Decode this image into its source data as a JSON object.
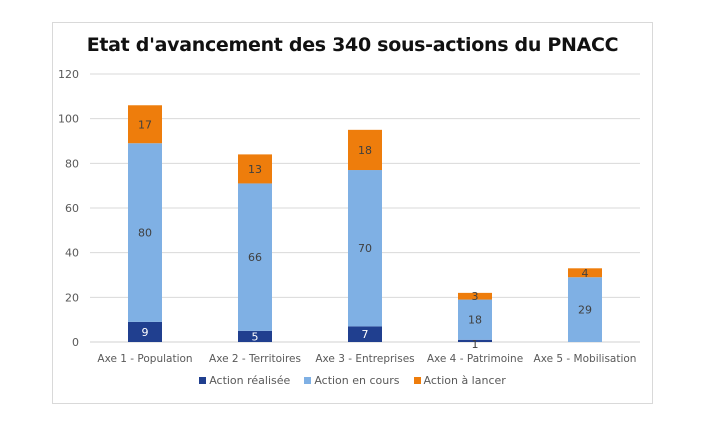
{
  "chart_data": {
    "type": "bar",
    "stacked": true,
    "title": "Etat d'avancement des 340 sous-actions du PNACC",
    "xlabel": "",
    "ylabel": "",
    "ylim": [
      0,
      120
    ],
    "yticks": [
      0,
      20,
      40,
      60,
      80,
      100,
      120
    ],
    "grid": true,
    "legend_position": "bottom",
    "categories": [
      "Axe 1 - Population",
      "Axe 2 - Territoires",
      "Axe 3 - Entreprises",
      "Axe 4 - Patrimoine",
      "Axe 5 - Mobilisation"
    ],
    "series": [
      {
        "name": "Action réalisée",
        "color": "#203f8f",
        "label_color": "#ffffff",
        "values": [
          9,
          5,
          7,
          1,
          0
        ],
        "labels": [
          "9",
          "5",
          "7",
          "1",
          ""
        ]
      },
      {
        "name": "Action en cours",
        "color": "#7fb0e4",
        "label_color": "#404040",
        "values": [
          80,
          66,
          70,
          18,
          29
        ],
        "labels": [
          "80",
          "66",
          "70",
          "18",
          "29"
        ]
      },
      {
        "name": "Action à lancer",
        "color": "#ee7d0c",
        "label_color": "#404040",
        "values": [
          17,
          13,
          18,
          3,
          4
        ],
        "labels": [
          "17",
          "13",
          "18",
          "3",
          "4"
        ]
      }
    ]
  }
}
